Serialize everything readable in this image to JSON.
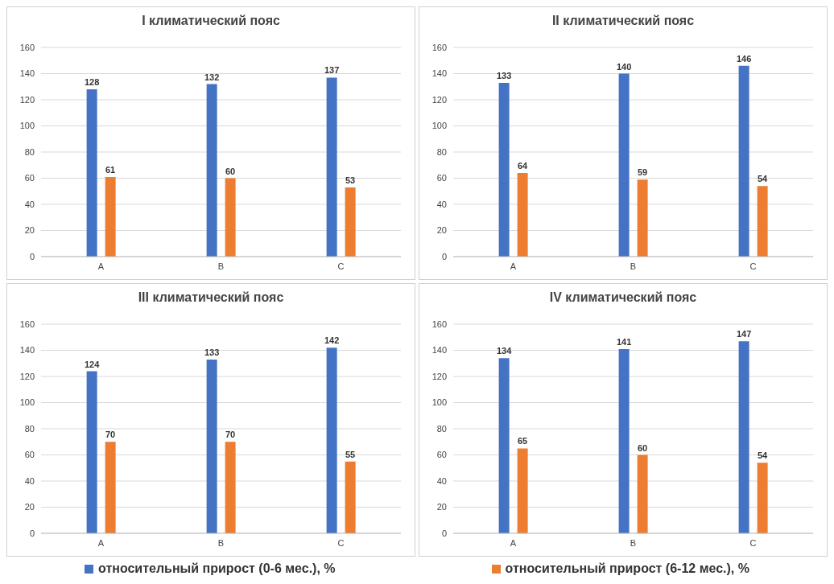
{
  "chart_data": [
    {
      "type": "bar",
      "title": "I климатический пояс",
      "categories": [
        "A",
        "B",
        "C"
      ],
      "series": [
        {
          "color": "#4472c4",
          "values": [
            128,
            132,
            137
          ]
        },
        {
          "color": "#ed7d31",
          "values": [
            61,
            60,
            53
          ]
        }
      ],
      "ylim": [
        0,
        160
      ],
      "yticks": [
        0,
        20,
        40,
        60,
        80,
        100,
        120,
        140,
        160
      ],
      "grid": "y",
      "data_labels": true
    },
    {
      "type": "bar",
      "title": "II климатический пояс",
      "categories": [
        "A",
        "B",
        "C"
      ],
      "series": [
        {
          "color": "#4472c4",
          "values": [
            133,
            140,
            146
          ]
        },
        {
          "color": "#ed7d31",
          "values": [
            64,
            59,
            54
          ]
        }
      ],
      "ylim": [
        0,
        160
      ],
      "yticks": [
        0,
        20,
        40,
        60,
        80,
        100,
        120,
        140,
        160
      ],
      "grid": "y",
      "data_labels": true
    },
    {
      "type": "bar",
      "title": "III климатический пояс",
      "categories": [
        "A",
        "B",
        "C"
      ],
      "series": [
        {
          "color": "#4472c4",
          "values": [
            124,
            133,
            142
          ]
        },
        {
          "color": "#ed7d31",
          "values": [
            70,
            70,
            55
          ]
        }
      ],
      "ylim": [
        0,
        160
      ],
      "yticks": [
        0,
        20,
        40,
        60,
        80,
        100,
        120,
        140,
        160
      ],
      "grid": "y",
      "data_labels": true
    },
    {
      "type": "bar",
      "title": "IV климатический пояс",
      "categories": [
        "A",
        "B",
        "C"
      ],
      "series": [
        {
          "name": "относительный прирост (0-6 мес.), %",
          "color": "#4472c4",
          "values": [
            134,
            141,
            147
          ]
        },
        {
          "name": "относительный прирост (6-12 мес.), %",
          "color": "#ed7d31",
          "values": [
            65,
            60,
            54
          ]
        }
      ],
      "ylim": [
        0,
        160
      ],
      "yticks": [
        0,
        20,
        40,
        60,
        80,
        100,
        120,
        140,
        160
      ],
      "grid": "y",
      "data_labels": true,
      "legend": "bottom"
    }
  ]
}
